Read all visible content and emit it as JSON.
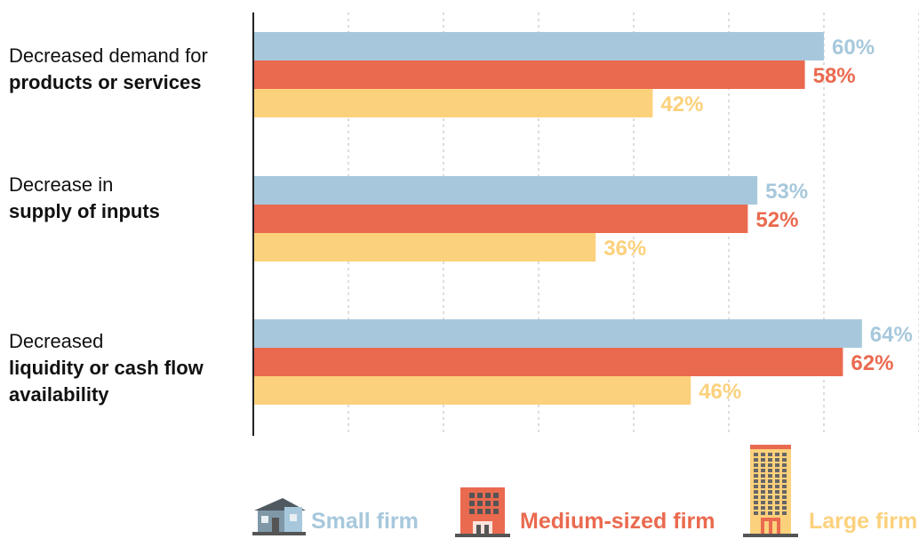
{
  "chart_data": {
    "type": "bar",
    "orientation": "horizontal",
    "categories": [
      "Decreased demand for products or services",
      "Decrease in supply of inputs",
      "Decreased liquidity or cash flow availability"
    ],
    "category_labels": [
      {
        "line1": "Decreased demand for",
        "line2": "products or services"
      },
      {
        "line1": "Decrease in",
        "line2": "supply of inputs"
      },
      {
        "line1": "Decreased",
        "line2": "liquidity or cash flow",
        "line3": "availability"
      }
    ],
    "series": [
      {
        "name": "Small firm",
        "values": [
          60,
          53,
          64
        ],
        "labels": [
          "60%",
          "53%",
          "64%"
        ],
        "color": "#a7c8dc"
      },
      {
        "name": "Medium-sized firm",
        "values": [
          58,
          52,
          62
        ],
        "labels": [
          "58%",
          "52%",
          "62%"
        ],
        "color": "#ea6a4f"
      },
      {
        "name": "Large firm",
        "values": [
          42,
          36,
          46
        ],
        "labels": [
          "42%",
          "36%",
          "46%"
        ],
        "color": "#fcd17c"
      }
    ],
    "xlim": [
      0,
      70
    ],
    "grid": true,
    "legend_placement": "bottom"
  },
  "legend": {
    "small_icon": "house-icon",
    "medium_icon": "office-building-icon",
    "large_icon": "tower-building-icon"
  }
}
